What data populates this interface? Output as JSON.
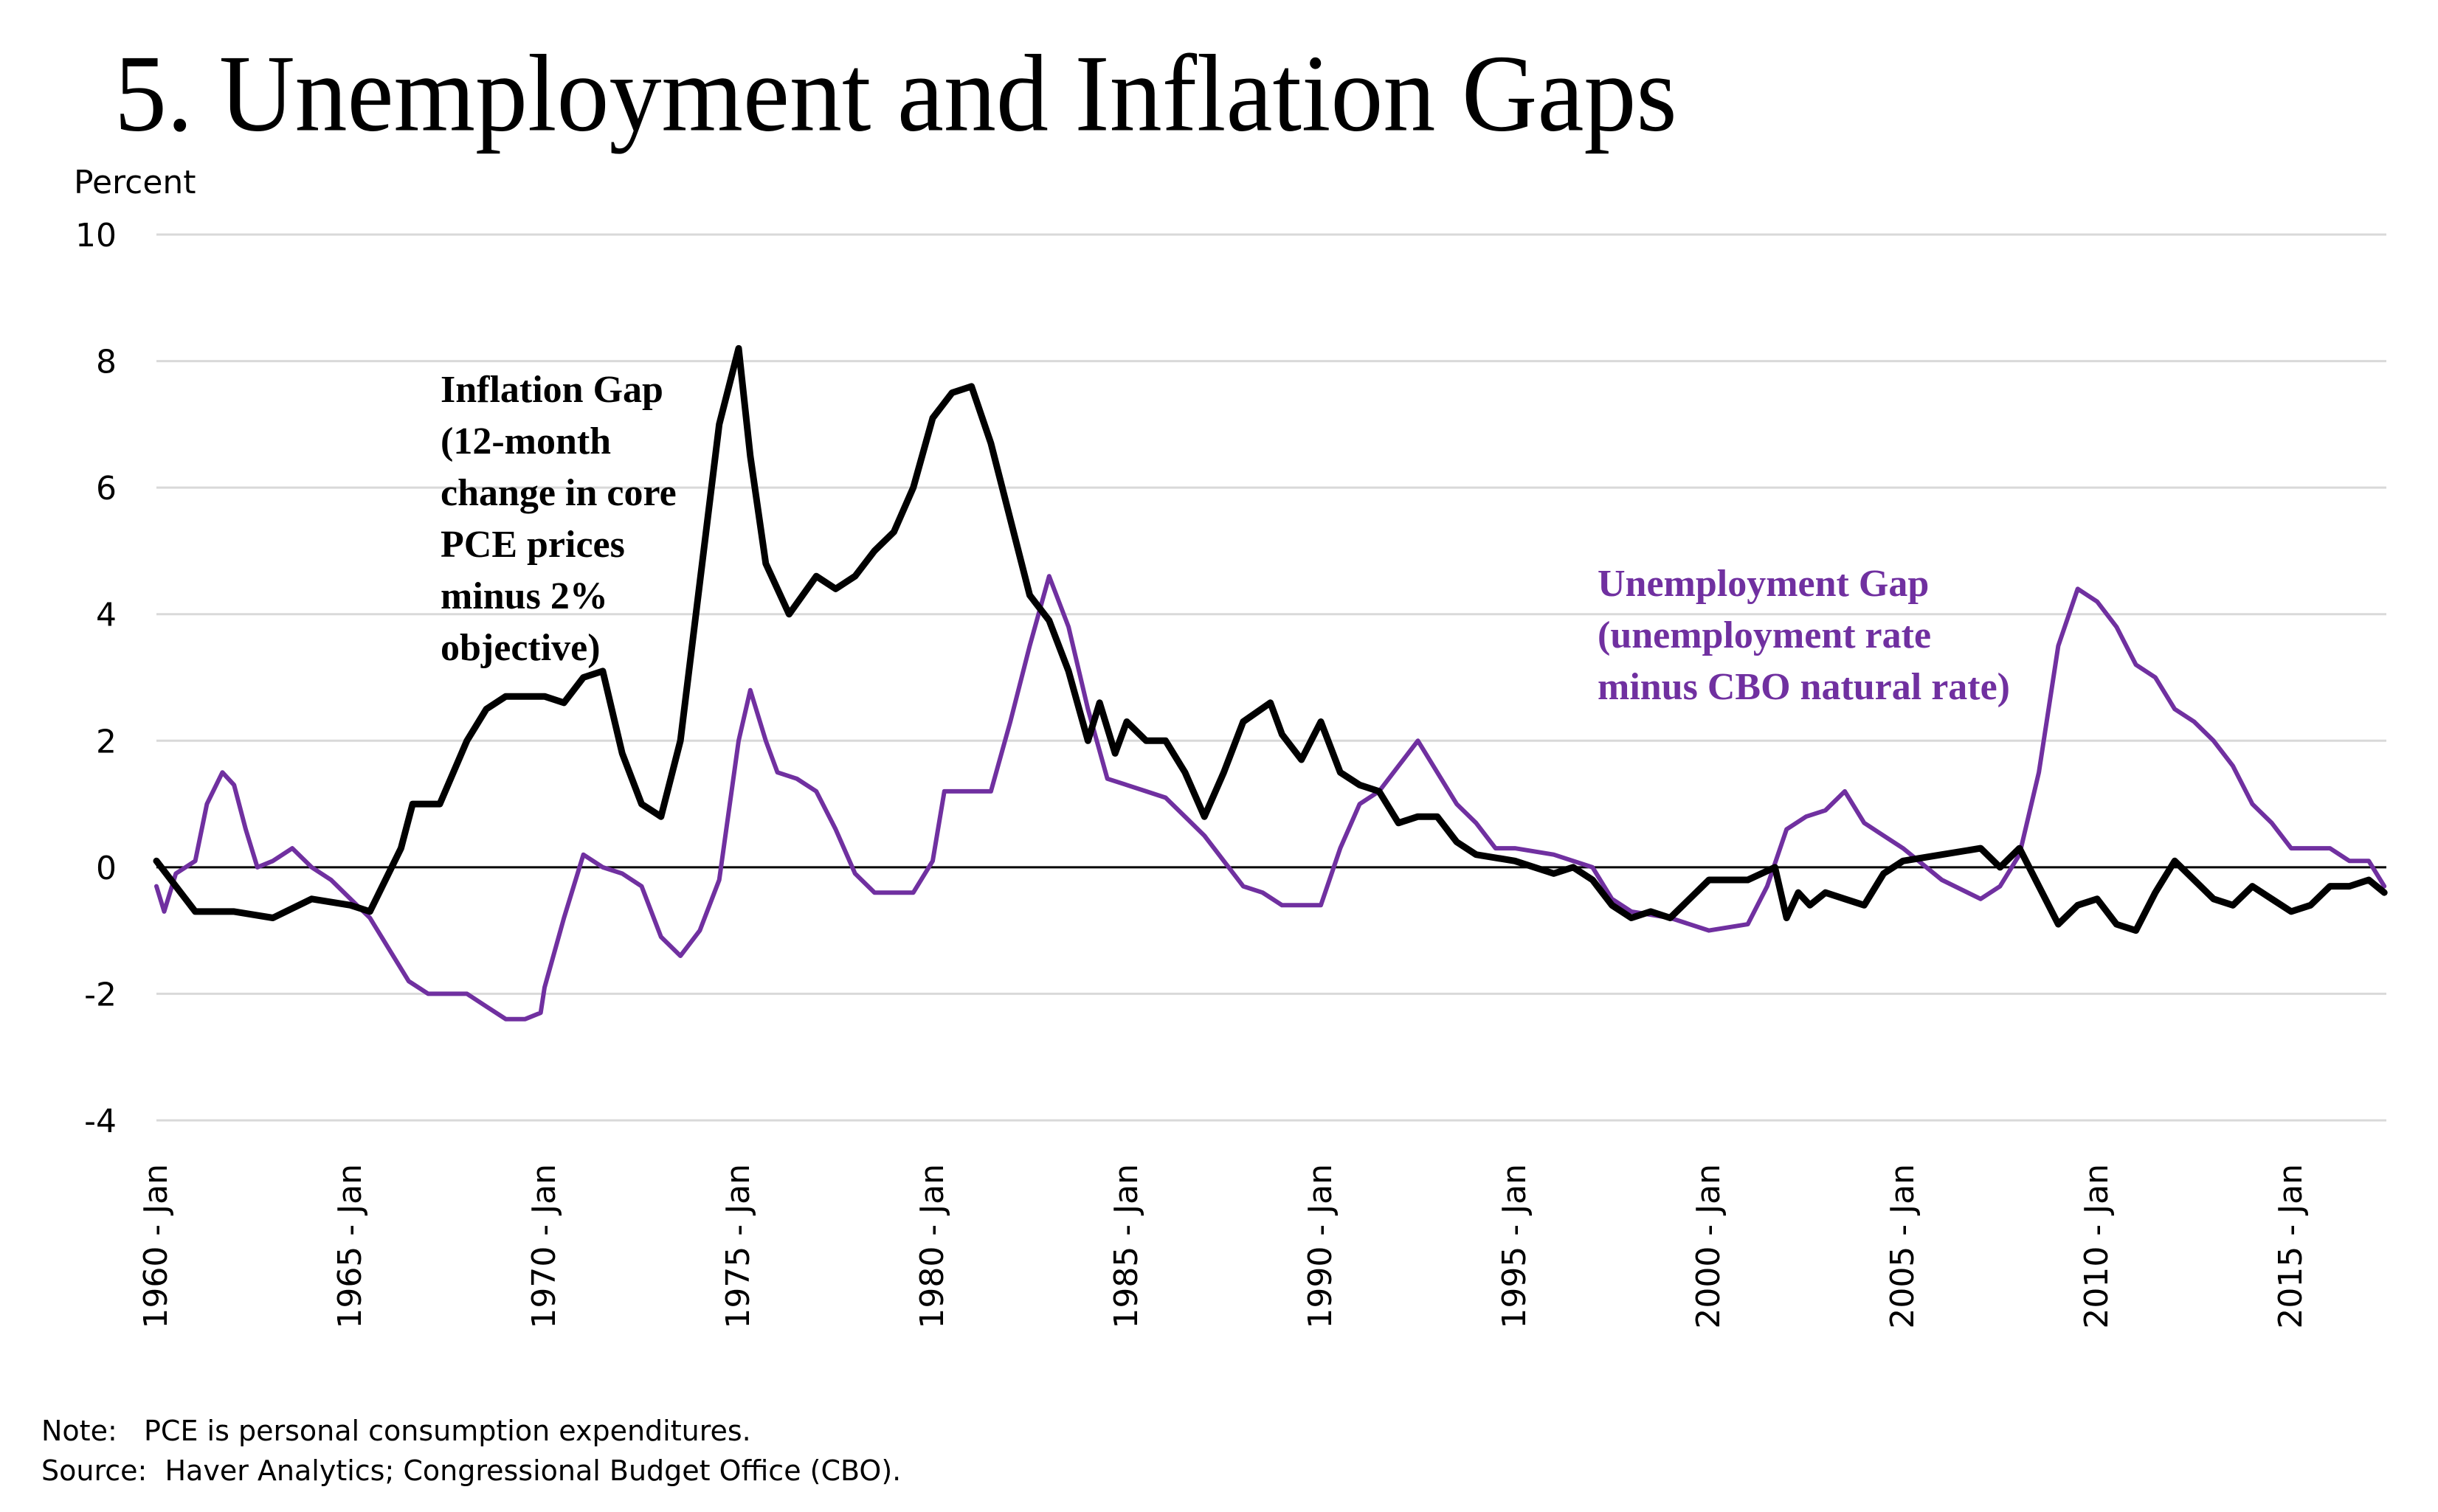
{
  "title": "5.  Unemployment and Inflation Gaps",
  "notes": {
    "note": "Note:   PCE is personal consumption expenditures.",
    "source": "Source:  Haver Analytics; Congressional Budget Office (CBO)."
  },
  "colors": {
    "inflation": "#000000",
    "unemployment": "#7030A0",
    "grid": "#d9d9d9"
  },
  "chart_data": {
    "type": "line",
    "title": "5.  Unemployment and Inflation Gaps",
    "ylabel": "Percent",
    "xlabel": "",
    "ylim": [
      -4,
      10
    ],
    "xlim": [
      1960,
      2017.6
    ],
    "yticks": [
      -4,
      -2,
      0,
      2,
      4,
      6,
      8,
      10
    ],
    "xticks": [
      {
        "x": 1960,
        "label": "1960 - Jan"
      },
      {
        "x": 1965,
        "label": "1965 - Jan"
      },
      {
        "x": 1970,
        "label": "1970 - Jan"
      },
      {
        "x": 1975,
        "label": "1975 - Jan"
      },
      {
        "x": 1980,
        "label": "1980 - Jan"
      },
      {
        "x": 1985,
        "label": "1985 - Jan"
      },
      {
        "x": 1990,
        "label": "1990 - Jan"
      },
      {
        "x": 1995,
        "label": "1995 - Jan"
      },
      {
        "x": 2000,
        "label": "2000 - Jan"
      },
      {
        "x": 2005,
        "label": "2005 - Jan"
      },
      {
        "x": 2010,
        "label": "2010 - Jan"
      },
      {
        "x": 2015,
        "label": "2015 - Jan"
      }
    ],
    "grid": true,
    "zero_line": true,
    "annotations": [
      {
        "series": "inflation",
        "lines": [
          "Inflation Gap",
          "(12-month",
          "change in core",
          "PCE prices",
          "minus 2%",
          "objective)"
        ]
      },
      {
        "series": "unemployment",
        "lines": [
          "Unemployment Gap",
          "(unemployment rate",
          "minus CBO natural rate)"
        ]
      }
    ],
    "series": [
      {
        "name": "Inflation Gap",
        "key": "inflation",
        "x": [
          1960.0,
          1960.5,
          1961,
          1962,
          1963,
          1964,
          1965,
          1965.5,
          1966.3,
          1966.6,
          1967.3,
          1968,
          1968.5,
          1969,
          1970,
          1970.5,
          1971,
          1971.5,
          1972,
          1972.5,
          1973,
          1973.5,
          1974,
          1974.5,
          1975,
          1975.3,
          1975.7,
          1976.3,
          1977,
          1977.5,
          1978,
          1978.5,
          1979,
          1979.5,
          1980,
          1980.5,
          1981,
          1981.5,
          1982,
          1982.5,
          1983,
          1983.5,
          1984,
          1984.3,
          1984.7,
          1985,
          1985.5,
          1986,
          1986.5,
          1987,
          1987.5,
          1988,
          1988.7,
          1989,
          1989.5,
          1990,
          1990.5,
          1991,
          1991.5,
          1992,
          1992.5,
          1993,
          1993.5,
          1994,
          1995,
          1996,
          1996.5,
          1997,
          1997.5,
          1998,
          1998.5,
          1999,
          2000,
          2001,
          2001.7,
          2002,
          2002.3,
          2002.6,
          2003,
          2003.5,
          2004,
          2004.5,
          2005,
          2006,
          2007,
          2007.5,
          2008,
          2008.5,
          2009,
          2009.5,
          2010,
          2010.5,
          2011,
          2011.5,
          2012,
          2012.5,
          2013,
          2013.5,
          2014,
          2014.5,
          2015,
          2015.5,
          2016,
          2016.5,
          2017,
          2017.4
        ],
        "values": [
          0.1,
          -0.3,
          -0.7,
          -0.7,
          -0.8,
          -0.5,
          -0.6,
          -0.7,
          0.3,
          1.0,
          1.0,
          2.0,
          2.5,
          2.7,
          2.7,
          2.6,
          3.0,
          3.1,
          1.8,
          1.0,
          0.8,
          2.0,
          4.5,
          7.0,
          8.2,
          6.5,
          4.8,
          4.0,
          4.6,
          4.4,
          4.6,
          5.0,
          5.3,
          6.0,
          7.1,
          7.5,
          7.6,
          6.7,
          5.5,
          4.3,
          3.9,
          3.1,
          2.0,
          2.6,
          1.8,
          2.3,
          2.0,
          2.0,
          1.5,
          0.8,
          1.5,
          2.3,
          2.6,
          2.1,
          1.7,
          2.3,
          1.5,
          1.3,
          1.2,
          0.7,
          0.8,
          0.8,
          0.4,
          0.2,
          0.1,
          -0.1,
          0.0,
          -0.2,
          -0.6,
          -0.8,
          -0.7,
          -0.8,
          -0.2,
          -0.2,
          0.0,
          -0.8,
          -0.4,
          -0.6,
          -0.4,
          -0.5,
          -0.6,
          -0.1,
          0.1,
          0.2,
          0.3,
          0.0,
          0.3,
          -0.3,
          -0.9,
          -0.6,
          -0.5,
          -0.9,
          -1.0,
          -0.4,
          0.1,
          -0.2,
          -0.5,
          -0.6,
          -0.3,
          -0.5,
          -0.7,
          -0.6,
          -0.3,
          -0.3,
          -0.2,
          -0.4
        ]
      },
      {
        "name": "Unemployment Gap",
        "key": "unemployment",
        "x": [
          1960,
          1960.2,
          1960.5,
          1961,
          1961.3,
          1961.7,
          1962,
          1962.3,
          1962.6,
          1963,
          1963.5,
          1964,
          1964.5,
          1965,
          1965.5,
          1966,
          1966.5,
          1967,
          1967.5,
          1968,
          1968.5,
          1969,
          1969.5,
          1969.9,
          1970,
          1970.5,
          1971,
          1971.5,
          1972,
          1972.5,
          1973,
          1973.5,
          1974,
          1974.5,
          1975,
          1975.3,
          1975.7,
          1976,
          1976.5,
          1977,
          1977.5,
          1978,
          1978.5,
          1979,
          1979.5,
          1980,
          1980.3,
          1980.6,
          1981,
          1981.5,
          1982,
          1982.5,
          1983,
          1983.5,
          1984,
          1984.5,
          1985,
          1985.5,
          1986,
          1986.5,
          1987,
          1987.5,
          1988,
          1988.5,
          1989,
          1989.5,
          1990,
          1990.5,
          1991,
          1991.5,
          1992,
          1992.5,
          1993,
          1993.5,
          1994,
          1994.5,
          1995,
          1996,
          1997,
          1997.5,
          1998,
          1999,
          2000,
          2001,
          2001.5,
          2002,
          2002.5,
          2003,
          2003.5,
          2004,
          2004.5,
          2005,
          2006,
          2007,
          2007.5,
          2008,
          2008.5,
          2009,
          2009.5,
          2010,
          2010.5,
          2011,
          2011.5,
          2012,
          2012.5,
          2013,
          2013.5,
          2014,
          2014.5,
          2015,
          2016,
          2016.5,
          2017,
          2017.4
        ],
        "values": [
          -0.3,
          -0.7,
          -0.1,
          0.1,
          1.0,
          1.5,
          1.3,
          0.6,
          0.0,
          0.1,
          0.3,
          0.0,
          -0.2,
          -0.5,
          -0.8,
          -1.3,
          -1.8,
          -2.0,
          -2.0,
          -2.0,
          -2.2,
          -2.4,
          -2.4,
          -2.3,
          -1.9,
          -0.8,
          0.2,
          0.0,
          -0.1,
          -0.3,
          -1.1,
          -1.4,
          -1.0,
          -0.2,
          2.0,
          2.8,
          2.0,
          1.5,
          1.4,
          1.2,
          0.6,
          -0.1,
          -0.4,
          -0.4,
          -0.4,
          0.1,
          1.2,
          1.2,
          1.2,
          1.2,
          2.3,
          3.5,
          4.6,
          3.8,
          2.5,
          1.4,
          1.3,
          1.2,
          1.1,
          0.8,
          0.5,
          0.1,
          -0.3,
          -0.4,
          -0.6,
          -0.6,
          -0.6,
          0.3,
          1.0,
          1.2,
          1.6,
          2.0,
          1.5,
          1.0,
          0.7,
          0.3,
          0.3,
          0.2,
          0.0,
          -0.5,
          -0.7,
          -0.8,
          -1.0,
          -0.9,
          -0.3,
          0.6,
          0.8,
          0.9,
          1.2,
          0.7,
          0.5,
          0.3,
          -0.2,
          -0.5,
          -0.3,
          0.2,
          1.5,
          3.5,
          4.4,
          4.2,
          3.8,
          3.2,
          3.0,
          2.5,
          2.3,
          2.0,
          1.6,
          1.0,
          0.7,
          0.3,
          0.3,
          0.1,
          0.1,
          -0.3
        ]
      }
    ]
  }
}
